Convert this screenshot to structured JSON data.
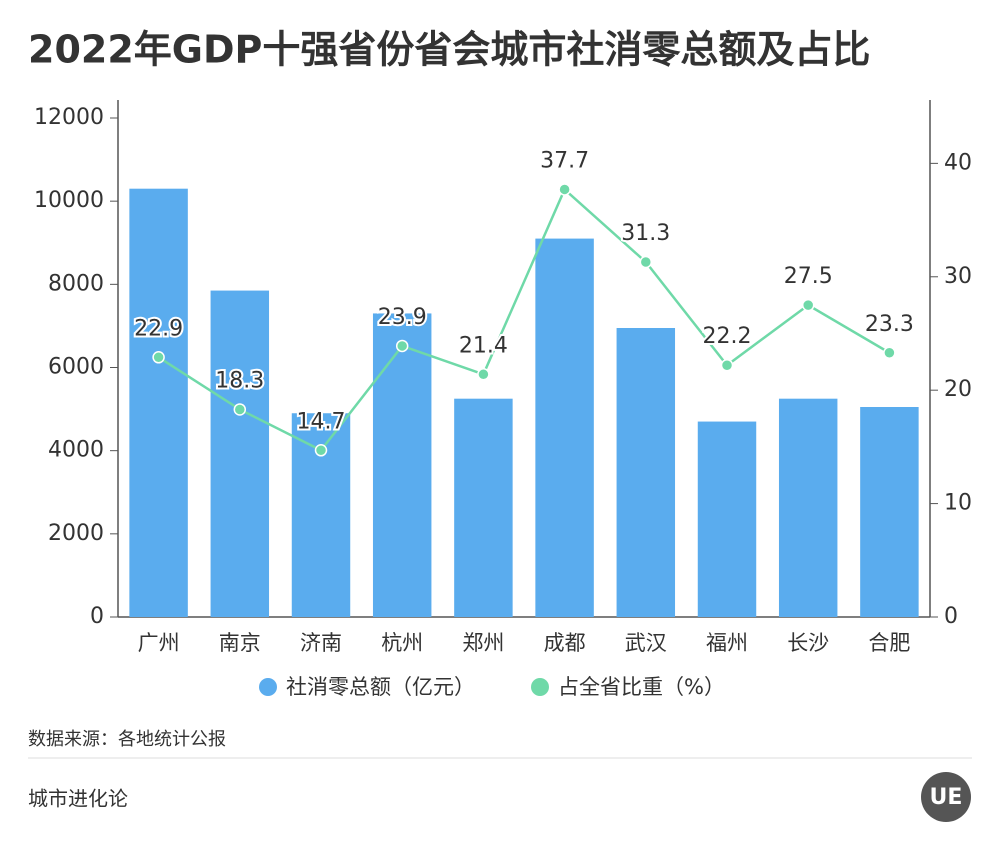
{
  "chart_data": {
    "type": "bar_line",
    "title": "2022年GDP十强省份省会城市社消零总额及占比",
    "categories": [
      "广州",
      "南京",
      "济南",
      "杭州",
      "郑州",
      "成都",
      "武汉",
      "福州",
      "长沙",
      "合肥"
    ],
    "series": [
      {
        "name": "社消零总额（亿元）",
        "color": "#5aacee",
        "values": [
          10300,
          7850,
          4900,
          7300,
          5250,
          9100,
          6950,
          4700,
          5250,
          5050
        ]
      },
      {
        "name": "占全省比重（%）",
        "color": "#6fd9a8",
        "axis": "y2",
        "values": [
          22.9,
          18.3,
          14.7,
          23.9,
          21.4,
          37.7,
          31.3,
          22.2,
          27.5,
          23.3
        ]
      }
    ],
    "ylim": [
      0,
      12000
    ],
    "yticks": [
      0,
      2000,
      4000,
      6000,
      8000,
      10000,
      12000
    ],
    "y2lim": [
      0,
      44
    ],
    "y2ticks": [
      0,
      10,
      20,
      30,
      40
    ]
  },
  "footer": {
    "source": "数据来源：各地统计公报",
    "brand": "城市进化论",
    "logo": "UE"
  }
}
